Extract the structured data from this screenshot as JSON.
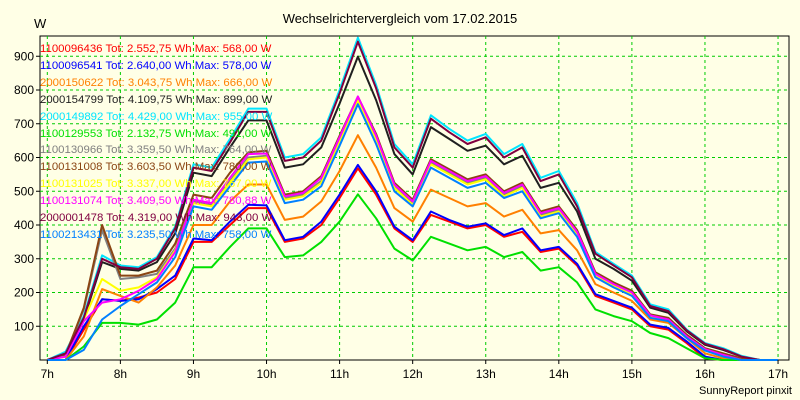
{
  "chart_data": {
    "type": "line",
    "title": "Wechselrichtervergleich vom 17.02.2015",
    "ylabel": "W",
    "footer": "SunnyReport pinxit",
    "ylim": [
      0,
      960
    ],
    "xlim": [
      6.9,
      17.15
    ],
    "y_ticks": [
      100,
      200,
      300,
      400,
      500,
      600,
      700,
      800,
      900
    ],
    "x_ticks": [
      {
        "value": 7,
        "label": "7h"
      },
      {
        "value": 8,
        "label": "8h"
      },
      {
        "value": 9,
        "label": "9h"
      },
      {
        "value": 10,
        "label": "10h"
      },
      {
        "value": 11,
        "label": "11h"
      },
      {
        "value": 12,
        "label": "12h"
      },
      {
        "value": 13,
        "label": "13h"
      },
      {
        "value": 14,
        "label": "14h"
      },
      {
        "value": 15,
        "label": "15h"
      },
      {
        "value": 16,
        "label": "16h"
      },
      {
        "value": 17,
        "label": "17h"
      }
    ],
    "grid": true,
    "legend_position": "top-left",
    "x": [
      7.0,
      7.25,
      7.5,
      7.75,
      8.0,
      8.25,
      8.5,
      8.75,
      9.0,
      9.25,
      9.5,
      9.75,
      10.0,
      10.25,
      10.5,
      10.75,
      11.0,
      11.25,
      11.5,
      11.75,
      12.0,
      12.25,
      12.5,
      12.75,
      13.0,
      13.25,
      13.5,
      13.75,
      14.0,
      14.25,
      14.5,
      14.75,
      15.0,
      15.25,
      15.5,
      15.75,
      16.0,
      16.25,
      16.5,
      16.75,
      17.0
    ],
    "series": [
      {
        "name": "1100096436 Tot: 2.552,75 Wh Max: 568,00 W",
        "color": "#ff0000",
        "values": [
          0,
          0,
          90,
          180,
          175,
          185,
          200,
          240,
          350,
          350,
          400,
          450,
          450,
          350,
          360,
          400,
          480,
          568,
          490,
          390,
          350,
          430,
          410,
          390,
          400,
          365,
          380,
          320,
          330,
          280,
          190,
          170,
          150,
          100,
          90,
          50,
          5,
          0,
          0,
          0,
          0
        ]
      },
      {
        "name": "1100096541 Tot: 2.640,00 Wh Max: 578,00 W",
        "color": "#0000ff",
        "values": [
          0,
          0,
          100,
          180,
          175,
          180,
          210,
          250,
          360,
          355,
          410,
          460,
          458,
          355,
          365,
          410,
          490,
          578,
          500,
          395,
          355,
          440,
          415,
          395,
          405,
          370,
          390,
          325,
          335,
          285,
          195,
          175,
          155,
          105,
          95,
          55,
          10,
          0,
          0,
          0,
          0
        ]
      },
      {
        "name": "2000150622 Tot: 3.043,75 Wh Max: 666,00 W",
        "color": "#ff8000",
        "values": [
          0,
          0,
          70,
          210,
          190,
          170,
          215,
          280,
          400,
          400,
          470,
          520,
          520,
          415,
          425,
          470,
          560,
          666,
          570,
          450,
          410,
          505,
          480,
          455,
          465,
          425,
          445,
          375,
          385,
          325,
          225,
          200,
          175,
          120,
          110,
          65,
          20,
          5,
          0,
          0,
          0
        ]
      },
      {
        "name": "2000154799 Tot: 4.109,75 Wh Max: 899,00 W",
        "color": "#202020",
        "values": [
          0,
          20,
          120,
          290,
          270,
          265,
          290,
          375,
          555,
          545,
          630,
          710,
          710,
          570,
          580,
          630,
          760,
          899,
          770,
          610,
          550,
          690,
          655,
          620,
          635,
          580,
          605,
          510,
          525,
          440,
          300,
          270,
          235,
          155,
          140,
          85,
          45,
          30,
          10,
          0,
          0
        ]
      },
      {
        "name": "2000149892 Tot: 4.429,00 Wh Max: 955,00 W",
        "color": "#00e5ff",
        "values": [
          0,
          25,
          130,
          310,
          280,
          275,
          305,
          395,
          580,
          570,
          655,
          745,
          745,
          600,
          610,
          660,
          800,
          955,
          815,
          640,
          580,
          725,
          685,
          650,
          670,
          610,
          640,
          540,
          560,
          465,
          320,
          285,
          250,
          165,
          150,
          90,
          50,
          35,
          12,
          0,
          0
        ]
      },
      {
        "name": "1100129553 Tot: 2.132,75 Wh Max: 491,00 W",
        "color": "#00e000",
        "values": [
          0,
          0,
          40,
          110,
          110,
          105,
          120,
          170,
          275,
          275,
          335,
          390,
          390,
          305,
          310,
          350,
          410,
          491,
          420,
          330,
          295,
          365,
          345,
          325,
          335,
          305,
          320,
          265,
          275,
          230,
          150,
          130,
          115,
          80,
          65,
          35,
          5,
          0,
          0,
          0,
          0
        ]
      },
      {
        "name": "1100130966 Tot: 3.359,50 Wh Max: 764,00 W",
        "color": "#808080",
        "values": [
          0,
          15,
          150,
          385,
          240,
          245,
          255,
          330,
          470,
          460,
          530,
          600,
          605,
          480,
          490,
          530,
          650,
          764,
          655,
          515,
          465,
          585,
          555,
          525,
          540,
          490,
          515,
          430,
          445,
          375,
          255,
          225,
          200,
          130,
          120,
          70,
          30,
          15,
          0,
          0,
          0
        ]
      },
      {
        "name": "1100131008 Tot: 3.603,50 Wh Max: 780,00 W",
        "color": "#8b4513",
        "values": [
          0,
          15,
          155,
          400,
          250,
          250,
          265,
          345,
          490,
          480,
          555,
          615,
          620,
          490,
          500,
          545,
          665,
          780,
          670,
          525,
          475,
          595,
          565,
          535,
          550,
          500,
          525,
          440,
          455,
          385,
          260,
          230,
          205,
          135,
          125,
          75,
          35,
          20,
          5,
          0,
          0
        ]
      },
      {
        "name": "1100131025 Tot: 3.337,00 Wh Max: 767,00 W",
        "color": "#ffff00",
        "values": [
          0,
          10,
          120,
          240,
          205,
          215,
          245,
          325,
          465,
          455,
          525,
          595,
          600,
          475,
          485,
          525,
          645,
          767,
          650,
          510,
          460,
          580,
          550,
          520,
          535,
          485,
          510,
          425,
          440,
          370,
          250,
          220,
          195,
          130,
          118,
          68,
          30,
          12,
          0,
          0,
          0
        ]
      },
      {
        "name": "1100131074 Tot: 3.409,50 Wh Max: 780,88 W",
        "color": "#ff00ff",
        "values": [
          0,
          10,
          115,
          170,
          180,
          205,
          240,
          320,
          475,
          465,
          540,
          610,
          612,
          485,
          495,
          540,
          660,
          781,
          665,
          520,
          470,
          590,
          560,
          530,
          545,
          495,
          520,
          435,
          450,
          380,
          255,
          225,
          200,
          132,
          120,
          70,
          32,
          15,
          0,
          0,
          0
        ]
      },
      {
        "name": "2000001478 Tot: 4.319,00 Wh Max: 943,00 W",
        "color": "#800040",
        "values": [
          0,
          20,
          125,
          300,
          275,
          270,
          300,
          390,
          570,
          560,
          645,
          735,
          735,
          590,
          600,
          650,
          790,
          943,
          805,
          630,
          570,
          715,
          675,
          640,
          660,
          600,
          630,
          530,
          550,
          455,
          315,
          280,
          245,
          160,
          145,
          88,
          48,
          32,
          10,
          0,
          0
        ]
      },
      {
        "name": "1100213431 Tot: 3.235,50 Wh Max: 758,00 W",
        "color": "#0080ff",
        "values": [
          0,
          0,
          30,
          120,
          160,
          195,
          230,
          305,
          455,
          445,
          515,
          585,
          588,
          465,
          475,
          515,
          635,
          758,
          640,
          500,
          455,
          570,
          540,
          510,
          525,
          480,
          500,
          420,
          435,
          365,
          245,
          215,
          190,
          125,
          115,
          65,
          28,
          10,
          0,
          0,
          0
        ]
      }
    ]
  }
}
